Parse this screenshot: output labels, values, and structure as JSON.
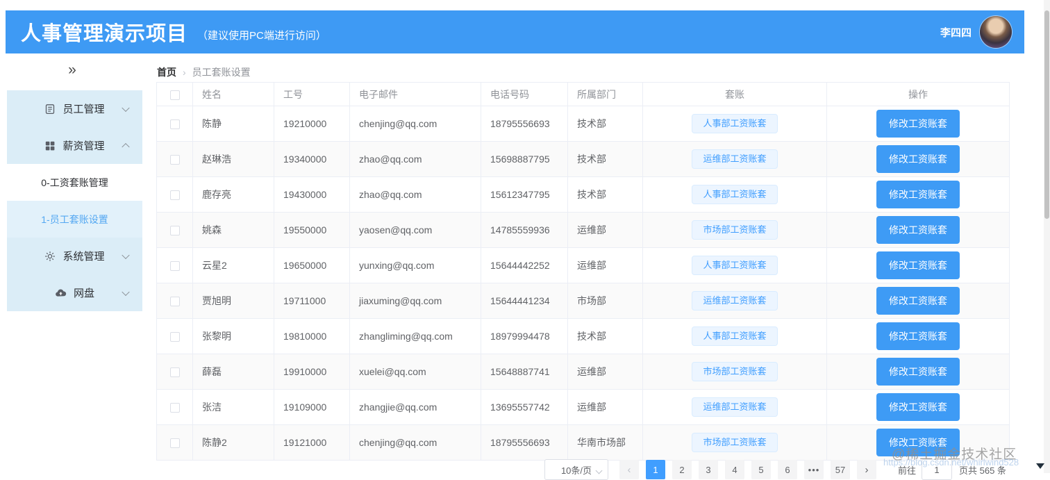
{
  "header": {
    "title": "人事管理演示项目",
    "subtitle": "（建议使用PC端进行访问）",
    "username": "李四四"
  },
  "sidebar": {
    "collapse_icon": "»",
    "menu": [
      {
        "label": "员工管理",
        "icon": "document-icon",
        "state": "collapsed"
      },
      {
        "label": "薪资管理",
        "icon": "grid-icon",
        "state": "expanded"
      },
      {
        "label": "系统管理",
        "icon": "gear-icon",
        "state": "collapsed"
      },
      {
        "label": "网盘",
        "icon": "cloud-icon",
        "state": "collapsed"
      }
    ],
    "submenu": [
      {
        "label": "0-工资套账管理",
        "active": false
      },
      {
        "label": "1-员工套账设置",
        "active": true
      }
    ]
  },
  "breadcrumb": {
    "home": "首页",
    "separator": "›",
    "current": "员工套账设置"
  },
  "table": {
    "columns": [
      "姓名",
      "工号",
      "电子邮件",
      "电话号码",
      "所属部门",
      "套账",
      "操作"
    ],
    "action_label": "修改工资账套",
    "rows": [
      {
        "name": "陈静",
        "id": "19210000",
        "email": "chenjing@qq.com",
        "phone": "18795556693",
        "dept": "技术部",
        "payroll_set": "人事部工资账套"
      },
      {
        "name": "赵琳浩",
        "id": "19340000",
        "email": "zhao@qq.com",
        "phone": "15698887795",
        "dept": "技术部",
        "payroll_set": "运维部工资账套"
      },
      {
        "name": "鹿存亮",
        "id": "19430000",
        "email": "zhao@qq.com",
        "phone": "15612347795",
        "dept": "技术部",
        "payroll_set": "人事部工资账套"
      },
      {
        "name": "姚森",
        "id": "19550000",
        "email": "yaosen@qq.com",
        "phone": "14785559936",
        "dept": "运维部",
        "payroll_set": "市场部工资账套"
      },
      {
        "name": "云星2",
        "id": "19650000",
        "email": "yunxing@qq.com",
        "phone": "15644442252",
        "dept": "运维部",
        "payroll_set": "人事部工资账套"
      },
      {
        "name": "贾旭明",
        "id": "19711000",
        "email": "jiaxuming@qq.com",
        "phone": "15644441234",
        "dept": "市场部",
        "payroll_set": "运维部工资账套"
      },
      {
        "name": "张黎明",
        "id": "19810000",
        "email": "zhangliming@qq.com",
        "phone": "18979994478",
        "dept": "技术部",
        "payroll_set": "人事部工资账套"
      },
      {
        "name": "薛磊",
        "id": "19910000",
        "email": "xuelei@qq.com",
        "phone": "15648887741",
        "dept": "运维部",
        "payroll_set": "市场部工资账套"
      },
      {
        "name": "张洁",
        "id": "19109000",
        "email": "zhangjie@qq.com",
        "phone": "13695557742",
        "dept": "运维部",
        "payroll_set": "运维部工资账套"
      },
      {
        "name": "陈静2",
        "id": "19121000",
        "email": "chenjing@qq.com",
        "phone": "18795556693",
        "dept": "华南市场部",
        "payroll_set": "市场部工资账套"
      }
    ]
  },
  "pagination": {
    "page_size": "10条/页",
    "prev_icon": "‹",
    "next_icon": "›",
    "pages": [
      "1",
      "2",
      "3",
      "4",
      "5",
      "6",
      "•••",
      "57"
    ],
    "active_page": "1",
    "goto_label": "前往",
    "goto_value": "1",
    "total_label": "页共 565 条"
  },
  "watermark": {
    "line1": "@稀土掘金技术社区",
    "line2": "https://blog.csdn.net/whirlwind528"
  },
  "colors": {
    "primary": "#409EFF",
    "header_bg": "#3E9AF4",
    "sidebar_menu_bg": "#DBEDF7",
    "tag_bg": "#ECF5FF",
    "tag_border": "#D9ECFF",
    "table_border": "#EBEEF5",
    "stripe_row_bg": "#FAFAFA",
    "text_primary": "#303133",
    "text_regular": "#606266",
    "text_secondary": "#909399"
  }
}
